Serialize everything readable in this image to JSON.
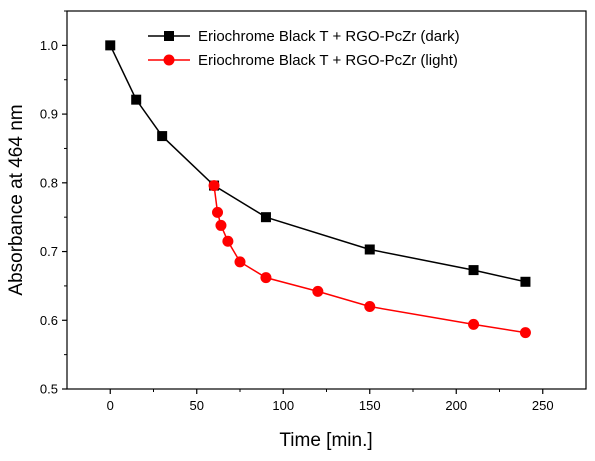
{
  "chart_data": {
    "type": "line",
    "title": "",
    "xlabel": "Time [min.]",
    "ylabel": "Absorbance at 464 nm",
    "xlim": [
      -25,
      275
    ],
    "ylim": [
      0.5,
      1.05
    ],
    "xticks": [
      0,
      50,
      100,
      150,
      200,
      250
    ],
    "yticks": [
      0.5,
      0.6,
      0.7,
      0.8,
      0.9,
      1.0
    ],
    "ytick_labels": [
      "0.5",
      "0.6",
      "0.7",
      "0.8",
      "0.9",
      "1.0"
    ],
    "grid": false,
    "legend_position": "top-right",
    "series": [
      {
        "name": "Eriochrome Black T + RGO-PcZr (dark)",
        "color": "#000000",
        "marker": "square",
        "x": [
          0,
          15,
          30,
          60,
          90,
          150,
          210,
          240
        ],
        "y": [
          1.0,
          0.921,
          0.868,
          0.796,
          0.75,
          0.703,
          0.673,
          0.656
        ]
      },
      {
        "name": "Eriochrome Black T + RGO-PcZr (light)",
        "color": "#ff0000",
        "marker": "circle",
        "x": [
          60,
          62,
          64,
          68,
          75,
          90,
          120,
          150,
          210,
          240
        ],
        "y": [
          0.796,
          0.757,
          0.738,
          0.715,
          0.685,
          0.662,
          0.642,
          0.62,
          0.594,
          0.582
        ]
      }
    ]
  }
}
